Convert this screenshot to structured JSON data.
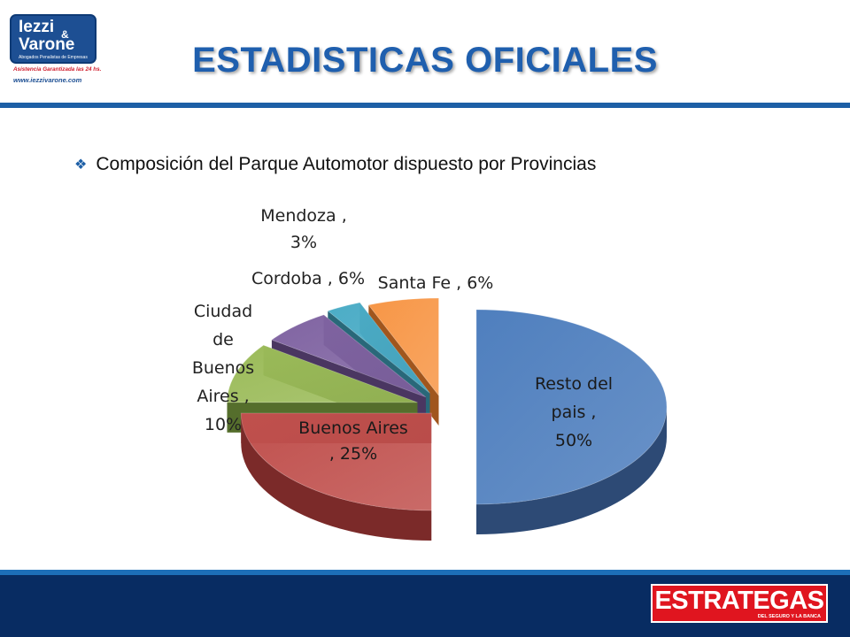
{
  "logo": {
    "line1": "Iezzi",
    "amp": "&",
    "line2": "Varone",
    "subtitle": "Abogados Penalistas de Empresas",
    "tagline": "Asistencia Garantizada las 24 hs.",
    "url": "www.iezzivarone.com"
  },
  "header": {
    "title": "ESTADISTICAS OFICIALES"
  },
  "content": {
    "bullet": "Composición del Parque Automotor dispuesto por Provincias"
  },
  "footer": {
    "brand": "ESTRATEGAS",
    "brand_sub": "DEL SEGURO Y LA BANCA"
  },
  "chart_data": {
    "type": "pie",
    "title": "",
    "three_d": true,
    "exploded": true,
    "slices": [
      {
        "name": "Resto del pais",
        "value": 50,
        "label": [
          "Resto del",
          "pais ,",
          "50%"
        ],
        "color": "#4f7fbe",
        "side": "#2d4a75"
      },
      {
        "name": "Buenos Aires",
        "value": 25,
        "label": [
          "Buenos Aires",
          ", 25%"
        ],
        "color": "#c0504d",
        "side": "#7b2a29"
      },
      {
        "name": "Ciudad de Buenos Aires",
        "value": 10,
        "label": [
          "Ciudad",
          "de",
          "Buenos",
          "Aires ,",
          "10%"
        ],
        "color": "#9bbb59",
        "side": "#556e2c"
      },
      {
        "name": "Cordoba",
        "value": 6,
        "label": [
          "Cordoba , 6%"
        ],
        "color": "#8064a2",
        "side": "#4a3661"
      },
      {
        "name": "Mendoza",
        "value": 3,
        "label": [
          "Mendoza ,",
          "3%"
        ],
        "color": "#4bacc6",
        "side": "#296879"
      },
      {
        "name": "Santa Fe",
        "value": 6,
        "label": [
          "Santa Fe , 6%"
        ],
        "color": "#f79646",
        "side": "#a0561d"
      }
    ]
  }
}
